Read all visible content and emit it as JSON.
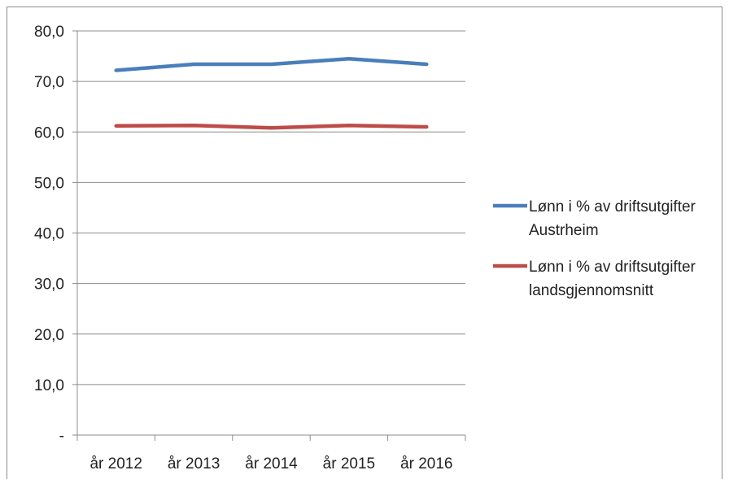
{
  "chart_data": {
    "type": "line",
    "categories": [
      "år 2012",
      "år 2013",
      "år 2014",
      "år 2015",
      "år 2016"
    ],
    "series": [
      {
        "name": "Lønn i % av driftsutgifter Austrheim",
        "name_lines": [
          "Lønn i % av driftsutgifter",
          "Austrheim"
        ],
        "color": "#4a7ebb",
        "values": [
          72.2,
          73.4,
          73.4,
          74.5,
          73.4
        ]
      },
      {
        "name": "Lønn i % av driftsutgifter landsgjennomsnitt",
        "name_lines": [
          "Lønn i % av driftsutgifter",
          "landsgjennomsnitt"
        ],
        "color": "#be4b48",
        "values": [
          61.2,
          61.3,
          60.8,
          61.3,
          61.0
        ]
      }
    ],
    "ylim": [
      0,
      80
    ],
    "yticks": [
      0,
      10,
      20,
      30,
      40,
      50,
      60,
      70,
      80
    ],
    "ytick_labels": [
      "-",
      "10,0",
      "20,0",
      "30,0",
      "40,0",
      "50,0",
      "60,0",
      "70,0",
      "80,0"
    ],
    "grid": true,
    "legend": "right"
  }
}
